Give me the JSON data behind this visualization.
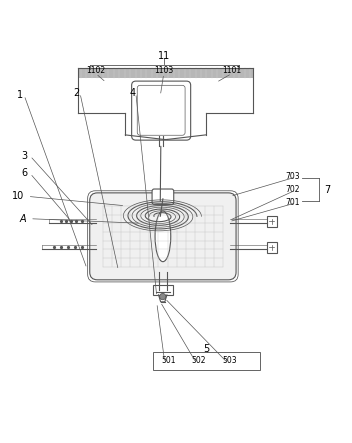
{
  "background_color": "#ffffff",
  "line_color": "#555555",
  "label_color": "#000000",
  "num_fs": 7,
  "lw": 0.8
}
